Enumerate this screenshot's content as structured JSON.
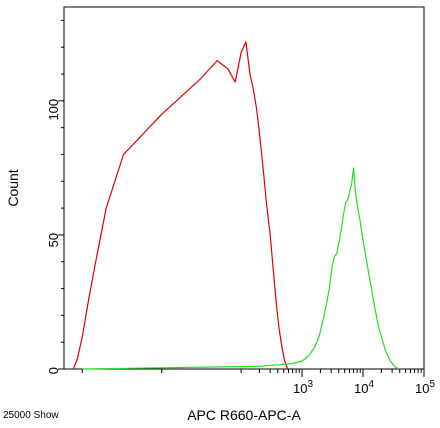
{
  "chart_data": {
    "type": "line",
    "title": "",
    "xlabel": "APC R660-APC-A",
    "ylabel": "Count",
    "x_scale": "biexponential",
    "xlim": [
      -200,
      100000
    ],
    "ylim": [
      0,
      135
    ],
    "y_ticks": [
      0,
      50,
      100
    ],
    "x_tick_labels": [
      {
        "value": 1000,
        "base": "10",
        "exp": "3"
      },
      {
        "value": 10000,
        "base": "10",
        "exp": "4"
      },
      {
        "value": 100000,
        "base": "10",
        "exp": "5"
      }
    ],
    "grid": false,
    "legend": "none",
    "series": [
      {
        "color": "#e00000",
        "points": [
          [
            -140,
            0
          ],
          [
            -120,
            4
          ],
          [
            -100,
            12
          ],
          [
            -80,
            25
          ],
          [
            -60,
            40
          ],
          [
            -40,
            60
          ],
          [
            -20,
            80
          ],
          [
            0,
            95
          ],
          [
            20,
            108
          ],
          [
            40,
            115
          ],
          [
            60,
            112
          ],
          [
            80,
            107
          ],
          [
            100,
            118
          ],
          [
            120,
            122
          ],
          [
            140,
            110
          ],
          [
            160,
            104
          ],
          [
            180,
            97
          ],
          [
            200,
            88
          ],
          [
            230,
            75
          ],
          [
            260,
            62
          ],
          [
            300,
            50
          ],
          [
            340,
            36
          ],
          [
            380,
            24
          ],
          [
            420,
            15
          ],
          [
            470,
            8
          ],
          [
            520,
            3
          ],
          [
            580,
            0
          ]
        ]
      },
      {
        "color": "#22dd22",
        "points": [
          [
            -100,
            0
          ],
          [
            200,
            1
          ],
          [
            700,
            2
          ],
          [
            1000,
            3
          ],
          [
            1300,
            5
          ],
          [
            1600,
            8
          ],
          [
            1900,
            12
          ],
          [
            2200,
            18
          ],
          [
            2500,
            24
          ],
          [
            2800,
            30
          ],
          [
            3100,
            38
          ],
          [
            3400,
            42
          ],
          [
            3700,
            43
          ],
          [
            4000,
            47
          ],
          [
            4400,
            52
          ],
          [
            4800,
            58
          ],
          [
            5200,
            62
          ],
          [
            5600,
            63
          ],
          [
            6000,
            66
          ],
          [
            6500,
            69
          ],
          [
            7000,
            75
          ],
          [
            7500,
            66
          ],
          [
            8200,
            60
          ],
          [
            9000,
            55
          ],
          [
            10000,
            48
          ],
          [
            11500,
            40
          ],
          [
            13000,
            33
          ],
          [
            15000,
            25
          ],
          [
            17500,
            17
          ],
          [
            20000,
            12
          ],
          [
            24000,
            6
          ],
          [
            28000,
            3
          ],
          [
            33000,
            1
          ],
          [
            38000,
            0
          ]
        ]
      }
    ]
  },
  "footer": {
    "left_label": "25000 Show"
  }
}
